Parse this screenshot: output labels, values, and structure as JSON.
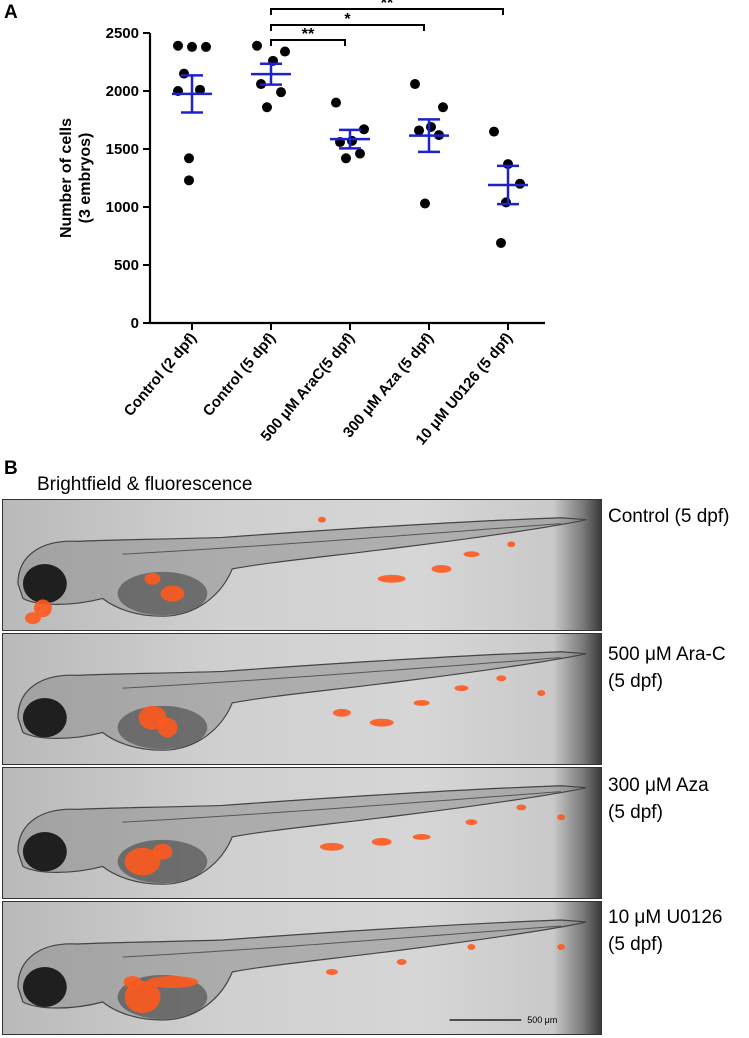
{
  "panel_a_label": "A",
  "panel_b_label": "B",
  "panel_b_title": "Brightfield & fluorescence",
  "chart_data": {
    "type": "scatter",
    "title": "",
    "xlabel": "",
    "ylabel": "Number of cells\n(3 embryos)",
    "ylabel_lines": [
      "Number of cells",
      "(3 embryos)"
    ],
    "ylim": [
      0,
      2500
    ],
    "yticks": [
      0,
      500,
      1000,
      1500,
      2000,
      2500
    ],
    "grid": false,
    "categories": [
      "Control (2 dpf)",
      "Control (5 dpf)",
      "500 μM AraC(5 dpf)",
      "300 μM Aza (5 dpf)",
      "10 μM U0126 (5 dpf)"
    ],
    "points": [
      [
        2390,
        2380,
        2380,
        2150,
        2010,
        2000,
        1420,
        1230
      ],
      [
        2390,
        2340,
        2260,
        2060,
        1990,
        1860
      ],
      [
        1900,
        1670,
        1570,
        1560,
        1460,
        1420
      ],
      [
        2060,
        1860,
        1690,
        1660,
        1620,
        1030
      ],
      [
        1650,
        1370,
        1200,
        1040,
        690
      ]
    ],
    "means": [
      1975,
      2145,
      1585,
      1615,
      1190
    ],
    "sem": [
      160,
      90,
      80,
      140,
      165
    ],
    "mean_color": "#1f22cc",
    "point_color": "#000000",
    "significance": [
      {
        "from": 1,
        "to": 2,
        "label": "**"
      },
      {
        "from": 1,
        "to": 3,
        "label": "*"
      },
      {
        "from": 1,
        "to": 4,
        "label": "**"
      }
    ]
  },
  "fish_panels": [
    {
      "label_lines": [
        "Control (5 dpf)"
      ]
    },
    {
      "label_lines": [
        "500 μM Ara-C",
        "(5 dpf)"
      ]
    },
    {
      "label_lines": [
        "300 μM Aza",
        "(5 dpf)"
      ]
    },
    {
      "label_lines": [
        "10 μM U0126",
        "(5 dpf)"
      ]
    }
  ],
  "scale_bar_label": "500 μm",
  "fluorescence_color": "#ff5a1e"
}
